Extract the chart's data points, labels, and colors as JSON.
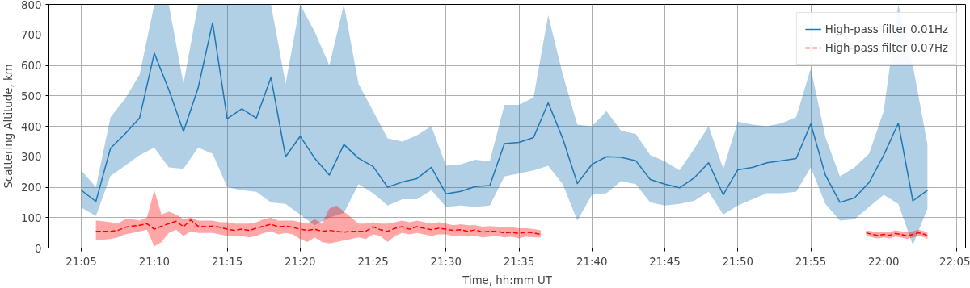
{
  "chart_data": {
    "type": "line",
    "xlabel": "Time, hh:mm UT",
    "ylabel": "Scattering Altitude, km",
    "xlim": [
      21.0463,
      22.0935
    ],
    "ylim": [
      0,
      800
    ],
    "xticks": [
      {
        "value": 21.0833,
        "label": "21:05"
      },
      {
        "value": 21.1667,
        "label": "21:10"
      },
      {
        "value": 21.25,
        "label": "21:15"
      },
      {
        "value": 21.3333,
        "label": "21:20"
      },
      {
        "value": 21.4167,
        "label": "21:25"
      },
      {
        "value": 21.5,
        "label": "21:30"
      },
      {
        "value": 21.5833,
        "label": "21:35"
      },
      {
        "value": 21.6667,
        "label": "21:40"
      },
      {
        "value": 21.75,
        "label": "21:45"
      },
      {
        "value": 21.8333,
        "label": "21:50"
      },
      {
        "value": 21.9167,
        "label": "21:55"
      },
      {
        "value": 22.0,
        "label": "22:00"
      },
      {
        "value": 22.0833,
        "label": "22:05"
      }
    ],
    "yticks": [
      0,
      100,
      200,
      300,
      400,
      500,
      600,
      700,
      800
    ],
    "grid": true,
    "legend": "top right",
    "marker": "none",
    "series": [
      {
        "name": "High-pass filter 0.01Hz",
        "color": "#1f77b4",
        "line_style": "solid",
        "x": [
          21.0833,
          21.1,
          21.1167,
          21.1333,
          21.15,
          21.1667,
          21.1833,
          21.2,
          21.2167,
          21.2333,
          21.25,
          21.2667,
          21.2833,
          21.3,
          21.3167,
          21.3333,
          21.35,
          21.3667,
          21.3833,
          21.4,
          21.4167,
          21.4333,
          21.45,
          21.4667,
          21.4833,
          21.5,
          21.5167,
          21.5333,
          21.55,
          21.5667,
          21.5833,
          21.6,
          21.6167,
          21.6333,
          21.65,
          21.6667,
          21.6833,
          21.7,
          21.7167,
          21.7333,
          21.75,
          21.7667,
          21.7833,
          21.8,
          21.8167,
          21.8333,
          21.85,
          21.8667,
          21.8833,
          21.9,
          21.9167,
          21.9333,
          21.95,
          21.9667,
          21.9833,
          22.0,
          22.0167,
          22.0333,
          22.05
        ],
        "values": [
          190,
          153,
          328,
          375,
          428,
          640,
          520,
          383,
          525,
          740,
          425,
          457,
          427,
          560,
          300,
          367,
          295,
          240,
          340,
          295,
          268,
          200,
          217,
          228,
          265,
          178,
          186,
          202,
          205,
          343,
          347,
          363,
          477,
          360,
          212,
          275,
          300,
          298,
          287,
          225,
          210,
          198,
          230,
          280,
          175,
          257,
          265,
          280,
          287,
          294,
          408,
          240,
          150,
          165,
          215,
          305,
          410,
          155,
          190
        ],
        "upper": [
          255,
          200,
          430,
          490,
          570,
          800,
          800,
          540,
          800,
          800,
          800,
          800,
          800,
          800,
          540,
          800,
          710,
          600,
          800,
          540,
          450,
          360,
          350,
          370,
          400,
          270,
          275,
          290,
          285,
          470,
          470,
          495,
          765,
          570,
          405,
          400,
          450,
          385,
          375,
          305,
          285,
          255,
          325,
          400,
          260,
          415,
          405,
          400,
          410,
          430,
          590,
          365,
          235,
          265,
          310,
          450,
          800,
          600,
          340
        ],
        "lower": [
          133,
          105,
          237,
          270,
          305,
          330,
          265,
          260,
          330,
          310,
          200,
          190,
          185,
          150,
          145,
          110,
          75,
          100,
          115,
          210,
          180,
          140,
          160,
          160,
          190,
          135,
          140,
          135,
          140,
          235,
          245,
          255,
          270,
          210,
          90,
          175,
          180,
          220,
          210,
          150,
          140,
          145,
          155,
          185,
          110,
          140,
          160,
          180,
          180,
          185,
          265,
          145,
          90,
          95,
          135,
          175,
          145,
          10,
          130
        ]
      },
      {
        "name": "High-pass filter 0.07Hz",
        "color": "#ff0000",
        "line_style": "dashed",
        "x": [
          21.1,
          21.1083,
          21.1167,
          21.125,
          21.1333,
          21.1417,
          21.15,
          21.1583,
          21.1667,
          21.175,
          21.1833,
          21.1917,
          21.2,
          21.2083,
          21.2167,
          21.225,
          21.2333,
          21.2417,
          21.25,
          21.2583,
          21.2667,
          21.275,
          21.2833,
          21.2917,
          21.3,
          21.3083,
          21.3167,
          21.325,
          21.3333,
          21.3417,
          21.35,
          21.3583,
          21.3667,
          21.375,
          21.3833,
          21.3917,
          21.4,
          21.4083,
          21.4167,
          21.425,
          21.4333,
          21.4417,
          21.45,
          21.4583,
          21.4667,
          21.475,
          21.4833,
          21.4917,
          21.5,
          21.5083,
          21.5167,
          21.525,
          21.5333,
          21.5417,
          21.55,
          21.5583,
          21.5667,
          21.575,
          21.5833,
          21.5917,
          21.6,
          21.6083,
          21.8,
          21.98,
          21.9867,
          21.9933,
          22.0,
          22.0067,
          22.0133,
          22.02,
          22.0267,
          22.0333,
          22.04,
          22.0467,
          22.05
        ],
        "values": [
          55,
          55,
          55,
          58,
          68,
          72,
          75,
          80,
          62,
          72,
          80,
          88,
          70,
          92,
          72,
          70,
          72,
          68,
          62,
          58,
          62,
          58,
          65,
          72,
          78,
          70,
          72,
          68,
          62,
          58,
          62,
          55,
          58,
          55,
          52,
          55,
          55,
          55,
          70,
          60,
          55,
          65,
          70,
          62,
          70,
          65,
          60,
          65,
          62,
          58,
          60,
          55,
          60,
          52,
          55,
          55,
          50,
          52,
          48,
          52,
          50,
          45,
          null,
          50,
          45,
          42,
          45,
          42,
          48,
          45,
          40,
          45,
          50,
          45,
          40
        ],
        "upper": [
          90,
          88,
          85,
          80,
          95,
          95,
          90,
          100,
          190,
          110,
          120,
          110,
          95,
          100,
          90,
          90,
          90,
          85,
          85,
          80,
          80,
          80,
          85,
          95,
          100,
          90,
          90,
          90,
          85,
          80,
          95,
          80,
          130,
          140,
          120,
          100,
          80,
          80,
          85,
          80,
          80,
          85,
          90,
          85,
          90,
          85,
          80,
          85,
          80,
          75,
          78,
          75,
          75,
          70,
          72,
          70,
          68,
          68,
          65,
          65,
          62,
          58,
          null,
          58,
          55,
          52,
          55,
          52,
          58,
          55,
          52,
          55,
          60,
          55,
          50
        ],
        "lower": [
          25,
          28,
          30,
          35,
          45,
          50,
          55,
          60,
          5,
          20,
          50,
          60,
          40,
          55,
          50,
          50,
          50,
          45,
          40,
          38,
          40,
          35,
          40,
          50,
          55,
          45,
          50,
          45,
          30,
          20,
          35,
          20,
          15,
          20,
          25,
          30,
          35,
          30,
          45,
          40,
          20,
          40,
          50,
          45,
          50,
          45,
          40,
          45,
          45,
          40,
          42,
          38,
          40,
          35,
          38,
          40,
          35,
          38,
          32,
          38,
          35,
          35,
          null,
          40,
          35,
          32,
          35,
          32,
          38,
          35,
          30,
          35,
          40,
          35,
          30
        ]
      }
    ]
  }
}
